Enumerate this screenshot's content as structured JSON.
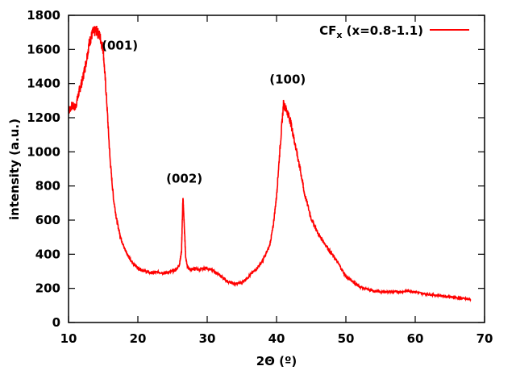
{
  "chart_data": {
    "type": "line",
    "title": "",
    "xlabel": "2Θ (º)",
    "ylabel": "intensity (a.u.)",
    "xlim": [
      10,
      70
    ],
    "ylim": [
      0,
      1800
    ],
    "xticks": [
      10,
      20,
      30,
      40,
      50,
      60,
      70
    ],
    "yticks": [
      0,
      200,
      400,
      600,
      800,
      1000,
      1200,
      1400,
      1600,
      1800
    ],
    "grid": false,
    "legend": {
      "placement": "top-right",
      "entries": [
        {
          "main": "CF",
          "sub": "x",
          "rest": " (x=0.8-1.1)"
        }
      ]
    },
    "colors": {
      "series": "#ff0000"
    },
    "annotations": [
      {
        "text": "(001)",
        "x": 17.4,
        "y": 1600
      },
      {
        "text": "(002)",
        "x": 26.7,
        "y": 820
      },
      {
        "text": "(100)",
        "x": 41.6,
        "y": 1400
      }
    ],
    "series": [
      {
        "name": "CFx (x=0.8-1.1)",
        "x": [
          10.0,
          10.5,
          11.0,
          11.5,
          12.0,
          12.5,
          13.0,
          13.5,
          14.0,
          14.5,
          15.0,
          15.5,
          16.0,
          16.5,
          17.0,
          17.5,
          18.0,
          18.5,
          19.0,
          20.0,
          21.0,
          22.0,
          23.0,
          24.0,
          25.0,
          25.5,
          26.0,
          26.3,
          26.5,
          26.7,
          26.9,
          27.2,
          27.6,
          28.0,
          29.0,
          30.0,
          31.0,
          32.0,
          33.0,
          34.0,
          35.0,
          36.0,
          37.0,
          38.0,
          39.0,
          39.5,
          40.0,
          40.5,
          41.0,
          41.5,
          42.0,
          42.5,
          43.0,
          43.5,
          44.0,
          45.0,
          46.0,
          47.0,
          48.0,
          49.0,
          50.0,
          51.0,
          52.0,
          53.0,
          54.0,
          55.0,
          56.0,
          57.0,
          58.0,
          59.0,
          60.0,
          61.0,
          62.0,
          63.0,
          64.0,
          65.0,
          66.0,
          67.0,
          68.0
        ],
        "y": [
          1240,
          1270,
          1260,
          1350,
          1420,
          1520,
          1640,
          1700,
          1710,
          1680,
          1600,
          1300,
          950,
          720,
          590,
          500,
          440,
          400,
          360,
          320,
          300,
          290,
          295,
          290,
          300,
          310,
          340,
          420,
          740,
          560,
          380,
          320,
          310,
          315,
          310,
          320,
          300,
          270,
          240,
          225,
          235,
          270,
          310,
          360,
          450,
          560,
          740,
          1020,
          1280,
          1240,
          1180,
          1080,
          980,
          880,
          760,
          610,
          520,
          460,
          400,
          340,
          270,
          240,
          210,
          195,
          185,
          180,
          180,
          180,
          180,
          185,
          180,
          170,
          165,
          160,
          155,
          150,
          145,
          140,
          135
        ]
      }
    ]
  }
}
